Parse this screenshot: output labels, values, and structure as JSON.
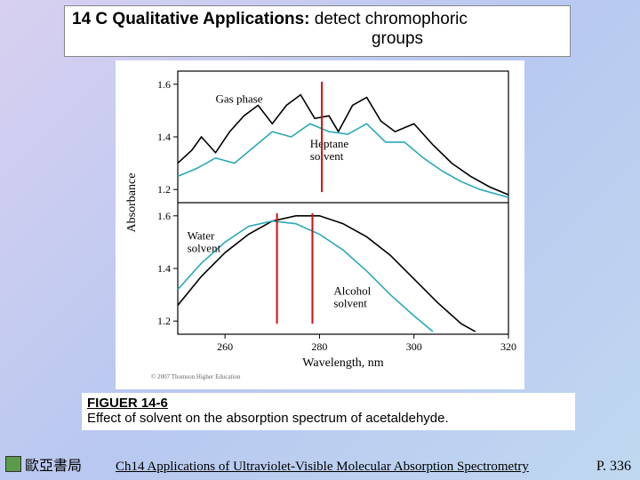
{
  "title": {
    "bold_part": "14 C Qualitative Applications:",
    "rest_line1": " detect chromophoric",
    "line2": "groups"
  },
  "figure": {
    "label": "FIGUER 14-6",
    "caption": "Effect of solvent on the absorption spectrum of acetaldehyde."
  },
  "publisher": "歐亞書局",
  "chapter": "Ch14 Applications of Ultraviolet-Visible Molecular Absorption Spectrometry",
  "page": "P. 336",
  "chart": {
    "type": "line-spectrum-stacked",
    "x_axis": {
      "label": "Wavelength, nm",
      "min": 250,
      "max": 320,
      "ticks": [
        260,
        280,
        300,
        320
      ],
      "label_fontsize": 14,
      "tick_fontsize": 12
    },
    "y_axis": {
      "label": "Absorbance",
      "label_fontsize": 14,
      "tick_fontsize": 12
    },
    "panels": [
      {
        "name": "top",
        "ylim": [
          1.15,
          1.65
        ],
        "yticks": [
          1.2,
          1.4,
          1.6
        ],
        "series": [
          {
            "name": "Gas phase",
            "color": "#000000",
            "line_width": 1.6,
            "label_xy": [
              258,
              1.53
            ],
            "points": [
              [
                250,
                1.3
              ],
              [
                253,
                1.35
              ],
              [
                255,
                1.4
              ],
              [
                258,
                1.34
              ],
              [
                261,
                1.42
              ],
              [
                264,
                1.48
              ],
              [
                267,
                1.52
              ],
              [
                270,
                1.45
              ],
              [
                273,
                1.52
              ],
              [
                276,
                1.56
              ],
              [
                279,
                1.47
              ],
              [
                282,
                1.48
              ],
              [
                284,
                1.42
              ],
              [
                287,
                1.52
              ],
              [
                290,
                1.55
              ],
              [
                293,
                1.46
              ],
              [
                296,
                1.42
              ],
              [
                300,
                1.45
              ],
              [
                304,
                1.37
              ],
              [
                308,
                1.3
              ],
              [
                312,
                1.25
              ],
              [
                316,
                1.21
              ],
              [
                320,
                1.18
              ]
            ]
          },
          {
            "name": "Heptane solvent",
            "color": "#2aa8b8",
            "line_width": 1.6,
            "label_xy": [
              278,
              1.34
            ],
            "points": [
              [
                250,
                1.25
              ],
              [
                254,
                1.28
              ],
              [
                258,
                1.32
              ],
              [
                262,
                1.3
              ],
              [
                266,
                1.36
              ],
              [
                270,
                1.42
              ],
              [
                274,
                1.4
              ],
              [
                278,
                1.45
              ],
              [
                282,
                1.42
              ],
              [
                286,
                1.41
              ],
              [
                290,
                1.45
              ],
              [
                294,
                1.38
              ],
              [
                298,
                1.38
              ],
              [
                302,
                1.32
              ],
              [
                306,
                1.27
              ],
              [
                310,
                1.23
              ],
              [
                314,
                1.2
              ],
              [
                318,
                1.18
              ],
              [
                320,
                1.17
              ]
            ]
          }
        ],
        "red_markers_x": [
          280.5
        ]
      },
      {
        "name": "bottom",
        "ylim": [
          1.15,
          1.65
        ],
        "yticks": [
          1.2,
          1.4,
          1.6
        ],
        "series": [
          {
            "name": "Alcohol solvent",
            "color": "#000000",
            "line_width": 1.6,
            "label_xy": [
              283,
              1.28
            ],
            "points": [
              [
                250,
                1.26
              ],
              [
                255,
                1.37
              ],
              [
                260,
                1.46
              ],
              [
                265,
                1.53
              ],
              [
                270,
                1.58
              ],
              [
                275,
                1.6
              ],
              [
                280,
                1.6
              ],
              [
                285,
                1.57
              ],
              [
                290,
                1.52
              ],
              [
                295,
                1.45
              ],
              [
                300,
                1.36
              ],
              [
                305,
                1.27
              ],
              [
                310,
                1.19
              ],
              [
                313,
                1.16
              ]
            ]
          },
          {
            "name": "Water solvent",
            "color": "#2aa8b8",
            "line_width": 1.6,
            "label_xy": [
              252,
              1.49
            ],
            "points": [
              [
                250,
                1.32
              ],
              [
                255,
                1.42
              ],
              [
                260,
                1.5
              ],
              [
                265,
                1.56
              ],
              [
                270,
                1.58
              ],
              [
                275,
                1.57
              ],
              [
                280,
                1.53
              ],
              [
                285,
                1.47
              ],
              [
                290,
                1.39
              ],
              [
                295,
                1.3
              ],
              [
                300,
                1.22
              ],
              [
                304,
                1.16
              ]
            ]
          }
        ],
        "red_markers_x": [
          271,
          278.5
        ]
      }
    ],
    "copyright_note": "© 2007 Thomson Higher Education",
    "colors": {
      "axis": "#000000",
      "grid": "none",
      "background": "#ffffff",
      "red_marker": "#d01010"
    }
  }
}
